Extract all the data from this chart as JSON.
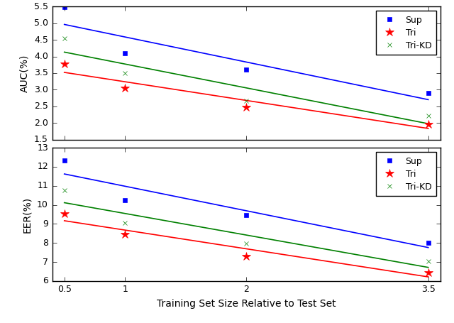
{
  "x": [
    0.5,
    1,
    2,
    3.5
  ],
  "auc": {
    "Sup": [
      5.48,
      4.1,
      3.6,
      2.9
    ],
    "Tri": [
      3.78,
      3.05,
      2.48,
      1.97
    ],
    "Tri-KD": [
      4.55,
      3.5,
      2.67,
      2.22
    ]
  },
  "eer": {
    "Sup": [
      12.35,
      10.25,
      9.45,
      8.0
    ],
    "Tri": [
      9.55,
      8.45,
      7.3,
      6.45
    ],
    "Tri-KD": [
      10.75,
      9.05,
      7.97,
      7.02
    ]
  },
  "colors": {
    "Sup": "#0000ff",
    "Tri": "#ff0000",
    "Tri-KD": "#008000"
  },
  "markers": {
    "Sup": "s",
    "Tri": "*",
    "Tri-KD": "x"
  },
  "auc_ylim": [
    1.5,
    5.5
  ],
  "auc_yticks": [
    1.5,
    2.0,
    2.5,
    3.0,
    3.5,
    4.0,
    4.5,
    5.0,
    5.5
  ],
  "eer_ylim": [
    6,
    13
  ],
  "eer_yticks": [
    6,
    7,
    8,
    9,
    10,
    11,
    12,
    13
  ],
  "xticks": [
    0.5,
    1,
    2,
    3.5
  ],
  "xlabel": "Training Set Size Relative to Test Set",
  "auc_ylabel": "AUC(%)",
  "eer_ylabel": "EER(%)",
  "series_order": [
    "Sup",
    "Tri",
    "Tri-KD"
  ],
  "x_fit": [
    0.5,
    0.6,
    0.7,
    0.8,
    0.9,
    1.0,
    1.1,
    1.2,
    1.3,
    1.4,
    1.5,
    1.6,
    1.7,
    1.8,
    1.9,
    2.0,
    2.1,
    2.2,
    2.3,
    2.4,
    2.5,
    2.6,
    2.7,
    2.8,
    2.9,
    3.0,
    3.1,
    3.2,
    3.3,
    3.4,
    3.5
  ]
}
